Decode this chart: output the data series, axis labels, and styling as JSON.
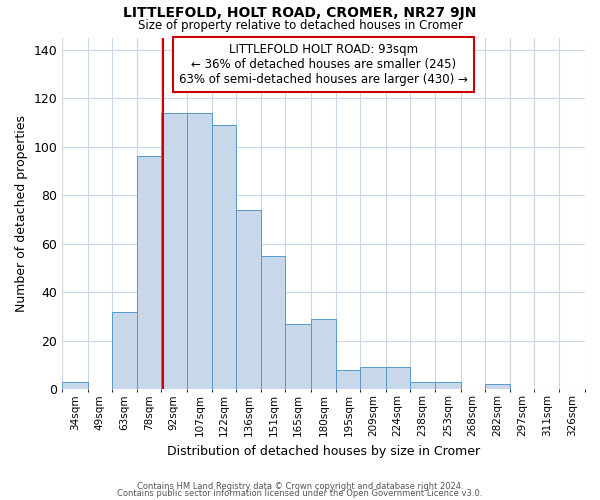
{
  "title": "LITTLEFOLD, HOLT ROAD, CROMER, NR27 9JN",
  "subtitle": "Size of property relative to detached houses in Cromer",
  "xlabel": "Distribution of detached houses by size in Cromer",
  "ylabel": "Number of detached properties",
  "bar_color": "#c8d8ea",
  "bar_edge_color": "#5599cc",
  "categories": [
    "34sqm",
    "49sqm",
    "63sqm",
    "78sqm",
    "92sqm",
    "107sqm",
    "122sqm",
    "136sqm",
    "151sqm",
    "165sqm",
    "180sqm",
    "195sqm",
    "209sqm",
    "224sqm",
    "238sqm",
    "253sqm",
    "268sqm",
    "282sqm",
    "297sqm",
    "311sqm",
    "326sqm"
  ],
  "values": [
    3,
    0,
    32,
    96,
    114,
    114,
    109,
    74,
    55,
    27,
    29,
    8,
    9,
    9,
    3,
    3,
    0,
    2,
    0,
    0,
    0
  ],
  "property_line_x": 93,
  "bin_edges": [
    34,
    49,
    63,
    78,
    92,
    107,
    122,
    136,
    151,
    165,
    180,
    195,
    209,
    224,
    238,
    253,
    268,
    282,
    297,
    311,
    326,
    341
  ],
  "annotation_title": "LITTLEFOLD HOLT ROAD: 93sqm",
  "annotation_line1": "← 36% of detached houses are smaller (245)",
  "annotation_line2": "63% of semi-detached houses are larger (430) →",
  "annotation_box_color": "#ffffff",
  "annotation_box_edge": "#cc0000",
  "vline_color": "#cc0000",
  "ylim": [
    0,
    145
  ],
  "yticks": [
    0,
    20,
    40,
    60,
    80,
    100,
    120,
    140
  ],
  "footer1": "Contains HM Land Registry data © Crown copyright and database right 2024.",
  "footer2": "Contains public sector information licensed under the Open Government Licence v3.0.",
  "background_color": "#ffffff",
  "grid_color": "#c8d8ea"
}
